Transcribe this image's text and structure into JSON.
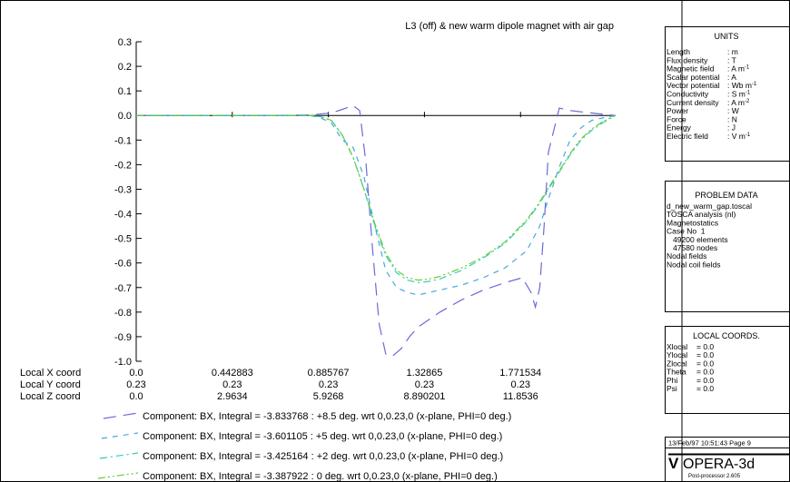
{
  "chart_data": {
    "type": "line",
    "title": "L3 (off) & new warm dipole magnet with air gap",
    "ylim": [
      -1.0,
      0.3
    ],
    "xlim": [
      0,
      2.21
    ],
    "y_ticks": [
      "0.3",
      "0.2",
      "0.1",
      "0.0",
      "-0.1",
      "-0.2",
      "-0.3",
      "-0.4",
      "-0.5",
      "-0.6",
      "-0.7",
      "-0.8",
      "-0.9",
      "-1.0"
    ],
    "axis_rows": [
      {
        "label": "Local X coord",
        "ticks": [
          "0.0",
          "0.442883",
          "0.885767",
          "1.32865",
          "1.771534"
        ]
      },
      {
        "label": "Local Y coord",
        "ticks": [
          "0.23",
          "0.23",
          "0.23",
          "0.23",
          "0.23"
        ]
      },
      {
        "label": "Local Z coord",
        "ticks": [
          "0.0",
          "2.9634",
          "5.9268",
          "8.890201",
          "11.8536"
        ]
      }
    ],
    "series": [
      {
        "name": "Component:  BX, Integral = -3.833768 : +8.5 deg. wrt 0,0.23,0 (x-plane, PHI=0 deg.)",
        "color": "#6a6ad8",
        "dash": "long-dash",
        "x": [
          0,
          0.6,
          0.8,
          0.9,
          0.95,
          1.0,
          1.03,
          1.06,
          1.09,
          1.12,
          1.15,
          1.18,
          1.22,
          1.26,
          1.3,
          1.4,
          1.5,
          1.6,
          1.7,
          1.78,
          1.82,
          1.84,
          1.86,
          1.88,
          1.9,
          1.95,
          2.0,
          2.05,
          2.1,
          2.15,
          2.21
        ],
        "y": [
          0,
          0,
          0.002,
          0.01,
          0.025,
          0.04,
          0.02,
          -0.2,
          -0.55,
          -0.85,
          -0.97,
          -0.98,
          -0.95,
          -0.9,
          -0.86,
          -0.8,
          -0.75,
          -0.71,
          -0.68,
          -0.66,
          -0.72,
          -0.78,
          -0.7,
          -0.45,
          -0.15,
          0.03,
          0.02,
          0.015,
          0.01,
          0.005,
          0
        ]
      },
      {
        "name": "Component:  BX, Integral = -3.601105 : +5 deg. wrt 0,0.23,0 (x-plane, PHI=0 deg.)",
        "color": "#44aadd",
        "dash": "dash",
        "x": [
          0,
          0.8,
          0.85,
          0.9,
          0.95,
          1.0,
          1.05,
          1.1,
          1.15,
          1.2,
          1.25,
          1.3,
          1.35,
          1.4,
          1.5,
          1.6,
          1.7,
          1.8,
          1.86,
          1.9,
          1.95,
          2.0,
          2.05,
          2.1,
          2.15,
          2.21
        ],
        "y": [
          0,
          0,
          -0.01,
          -0.03,
          -0.1,
          -0.13,
          -0.25,
          -0.45,
          -0.63,
          -0.7,
          -0.72,
          -0.73,
          -0.72,
          -0.71,
          -0.69,
          -0.66,
          -0.62,
          -0.55,
          -0.45,
          -0.34,
          -0.21,
          -0.1,
          -0.05,
          -0.02,
          -0.01,
          0
        ]
      },
      {
        "name": "Component:  BX, Integral = -3.425164 : +2 deg. wrt 0,0.23,0 (x-plane, PHI=0 deg.)",
        "color": "#33ccbb",
        "dash": "dash-dot",
        "x": [
          0,
          0.8,
          0.85,
          0.9,
          0.95,
          1.0,
          1.05,
          1.1,
          1.15,
          1.2,
          1.25,
          1.3,
          1.35,
          1.4,
          1.5,
          1.6,
          1.7,
          1.8,
          1.85,
          1.9,
          1.95,
          2.0,
          2.05,
          2.1,
          2.15,
          2.21
        ],
        "y": [
          0,
          0,
          -0.005,
          -0.02,
          -0.08,
          -0.17,
          -0.3,
          -0.45,
          -0.57,
          -0.64,
          -0.67,
          -0.68,
          -0.675,
          -0.665,
          -0.63,
          -0.58,
          -0.52,
          -0.43,
          -0.37,
          -0.3,
          -0.23,
          -0.16,
          -0.1,
          -0.06,
          -0.03,
          0
        ]
      },
      {
        "name": "Component:  BX, Integral = -3.387922 : 0 deg. wrt 0,0.23,0 (x-plane, PHI=0 deg.)",
        "color": "#66cc33",
        "dash": "dash-dot-dot",
        "x": [
          0,
          0.8,
          0.85,
          0.9,
          0.95,
          1.0,
          1.05,
          1.1,
          1.15,
          1.2,
          1.25,
          1.3,
          1.35,
          1.4,
          1.5,
          1.6,
          1.7,
          1.8,
          1.85,
          1.9,
          1.95,
          2.0,
          2.05,
          2.1,
          2.15,
          2.21
        ],
        "y": [
          0,
          0,
          -0.005,
          -0.02,
          -0.08,
          -0.17,
          -0.3,
          -0.44,
          -0.56,
          -0.63,
          -0.66,
          -0.67,
          -0.665,
          -0.655,
          -0.62,
          -0.575,
          -0.515,
          -0.425,
          -0.365,
          -0.295,
          -0.225,
          -0.155,
          -0.095,
          -0.055,
          -0.025,
          0
        ]
      }
    ]
  },
  "panels": {
    "units": {
      "title": "UNITS",
      "rows": [
        {
          "name": "Length",
          "unit": ": m",
          "sup": ""
        },
        {
          "name": "Flux density",
          "unit": ": T",
          "sup": ""
        },
        {
          "name": "Magnetic field",
          "unit": ": A m",
          "sup": "-1"
        },
        {
          "name": "Scalar potential",
          "unit": ": A",
          "sup": ""
        },
        {
          "name": "Vector potential",
          "unit": ": Wb m",
          "sup": "-1"
        },
        {
          "name": "Conductivity",
          "unit": ": S m",
          "sup": "-1"
        },
        {
          "name": "Current density",
          "unit": ": A m",
          "sup": "-2"
        },
        {
          "name": "Power",
          "unit": ": W",
          "sup": ""
        },
        {
          "name": "Force",
          "unit": ": N",
          "sup": ""
        },
        {
          "name": "Energy",
          "unit": ": J",
          "sup": ""
        },
        {
          "name": "Electric field",
          "unit": ": V m",
          "sup": "-1"
        }
      ]
    },
    "problem": {
      "title": "PROBLEM DATA",
      "lines": [
        "d_new_warm_gap.toscal",
        "TOSCA analysis (nl)",
        "Magnetostatics",
        "Case No  1",
        "   49200 elements",
        "   47580 nodes",
        "Nodal fields",
        "Nodal coil fields"
      ]
    },
    "local": {
      "title": "LOCAL COORDS.",
      "rows": [
        {
          "name": "Xlocal",
          "value": "= 0.0"
        },
        {
          "name": "Ylocal",
          "value": "= 0.0"
        },
        {
          "name": "Zlocal",
          "value": "= 0.0"
        },
        {
          "name": "Theta",
          "value": "= 0.0"
        },
        {
          "name": "Phi",
          "value": "= 0.0"
        },
        {
          "name": "Psi",
          "value": "= 0.0"
        }
      ]
    },
    "footer": {
      "timestamp": "13/Feb/97 10:51:43 Page 9",
      "logo_mark": "V",
      "logo_text": "OPERA-3d",
      "logo_sub": "Post-processor 2.605"
    }
  }
}
